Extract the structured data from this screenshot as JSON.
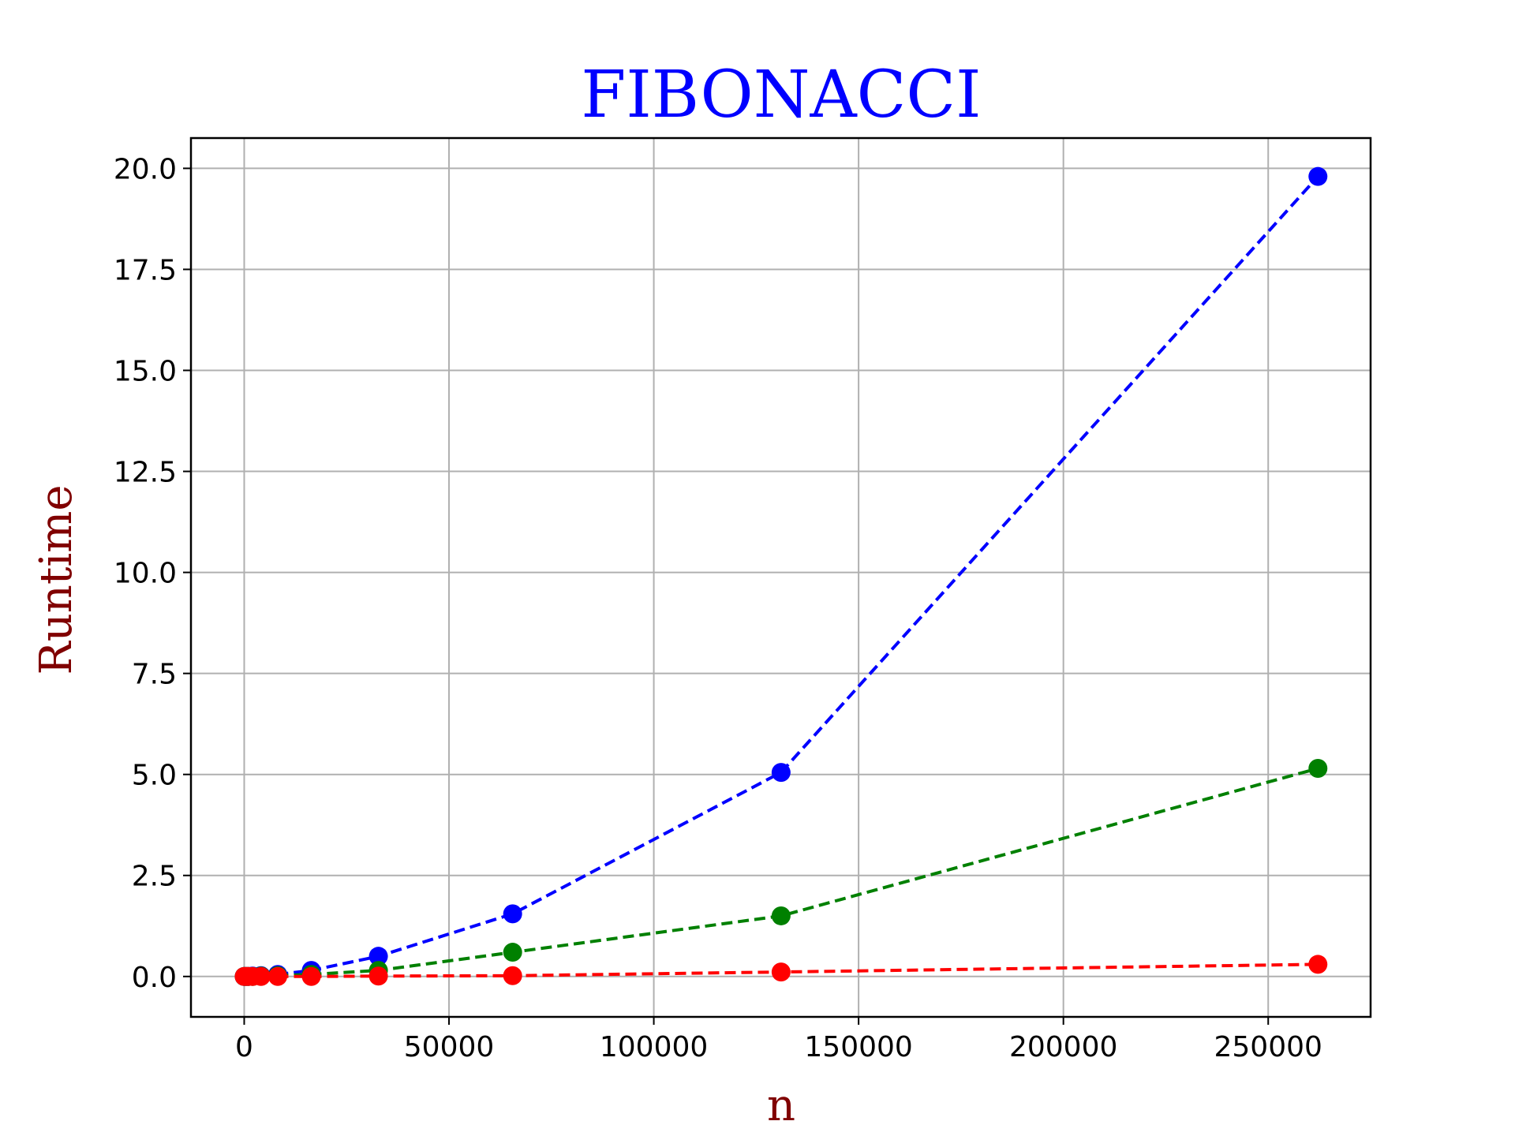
{
  "chart_data": {
    "type": "line",
    "title": "FIBONACCI",
    "xlabel": "n",
    "ylabel": "Runtime",
    "xlim": [
      -13000,
      275000
    ],
    "ylim": [
      -1.0,
      20.75
    ],
    "xticks": [
      0,
      50000,
      100000,
      150000,
      200000,
      250000
    ],
    "xtick_labels": [
      "0",
      "50000",
      "100000",
      "150000",
      "200000",
      "250000"
    ],
    "yticks": [
      0.0,
      2.5,
      5.0,
      7.5,
      10.0,
      12.5,
      15.0,
      17.5,
      20.0
    ],
    "ytick_labels": [
      "0.0",
      "2.5",
      "5.0",
      "7.5",
      "10.0",
      "12.5",
      "15.0",
      "17.5",
      "20.0"
    ],
    "grid": true,
    "line_style": "dashed",
    "marker": "circle",
    "colors": {
      "title": "#0000ff",
      "axis_label": "#800000",
      "grid": "#b0b0b0"
    },
    "series": [
      {
        "color": "#0000ff",
        "x": [
          0,
          512,
          1024,
          2048,
          4096,
          8192,
          16384,
          32768,
          65536,
          131072,
          262144
        ],
        "y": [
          0.0,
          0.0,
          0.0,
          0.01,
          0.02,
          0.05,
          0.15,
          0.5,
          1.55,
          5.05,
          19.8
        ]
      },
      {
        "color": "#008000",
        "x": [
          0,
          512,
          1024,
          2048,
          4096,
          8192,
          16384,
          32768,
          65536,
          131072,
          262144
        ],
        "y": [
          0.0,
          0.0,
          0.0,
          0.0,
          0.01,
          0.02,
          0.05,
          0.15,
          0.6,
          1.5,
          5.15
        ]
      },
      {
        "color": "#ff0000",
        "x": [
          0,
          512,
          1024,
          2048,
          4096,
          8192,
          16384,
          32768,
          65536,
          131072,
          262144
        ],
        "y": [
          0.0,
          0.0,
          0.0,
          0.0,
          0.0,
          0.0,
          0.0,
          0.01,
          0.02,
          0.11,
          0.3
        ]
      }
    ]
  }
}
